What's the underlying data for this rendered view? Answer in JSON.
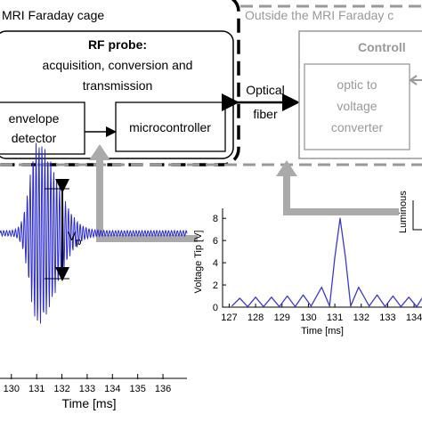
{
  "faraday_cage": {
    "title": "MRI Faraday cage",
    "rf_probe": {
      "title": "RF probe:",
      "lines": [
        "acquisition, conversion and",
        "transmission"
      ]
    },
    "envelope_detector": [
      "envelope",
      "detector"
    ],
    "microcontroller": "microcontroller"
  },
  "link": [
    "Optical",
    "fiber"
  ],
  "outside": {
    "title": "Outside the MRI Faraday c",
    "controller": "Controll",
    "converter": [
      "optic to",
      "voltage",
      "converter"
    ],
    "luminous": "Luminous"
  },
  "left_plot": {
    "xlabel": "Time [ms]",
    "xticks": [
      130,
      131,
      132,
      133,
      134,
      135,
      136
    ],
    "xlim": [
      129.55,
      136.95
    ],
    "peak_label": "V",
    "peak_sub": "p"
  },
  "right_plot": {
    "type": "line",
    "ylabel": "Voltage Tip [V]",
    "xlabel": "Time [ms]",
    "color": "#3b3bc8",
    "x": [
      127.1,
      127.4,
      127.7,
      128.0,
      128.3,
      128.6,
      128.9,
      129.2,
      129.5,
      129.8,
      130.1,
      130.5,
      130.8,
      131.0,
      131.2,
      131.4,
      131.6,
      131.9,
      132.3,
      132.6,
      132.9,
      133.2,
      133.5,
      133.8,
      134.1,
      134.3
    ],
    "values": [
      0.1,
      0.8,
      0.05,
      0.9,
      0.05,
      0.9,
      0.05,
      1.0,
      0.05,
      1.1,
      0.1,
      1.8,
      0.1,
      4.5,
      8.0,
      4.5,
      0.1,
      1.8,
      0.1,
      1.1,
      0.05,
      1.0,
      0.05,
      0.9,
      0.05,
      0.8
    ],
    "xticks": [
      127,
      128,
      129,
      130,
      131,
      132,
      133,
      134
    ],
    "yticks": [
      0,
      2,
      4,
      6,
      8
    ],
    "xlim": [
      126.75,
      134.3
    ],
    "ylim": [
      0,
      8.9
    ]
  }
}
